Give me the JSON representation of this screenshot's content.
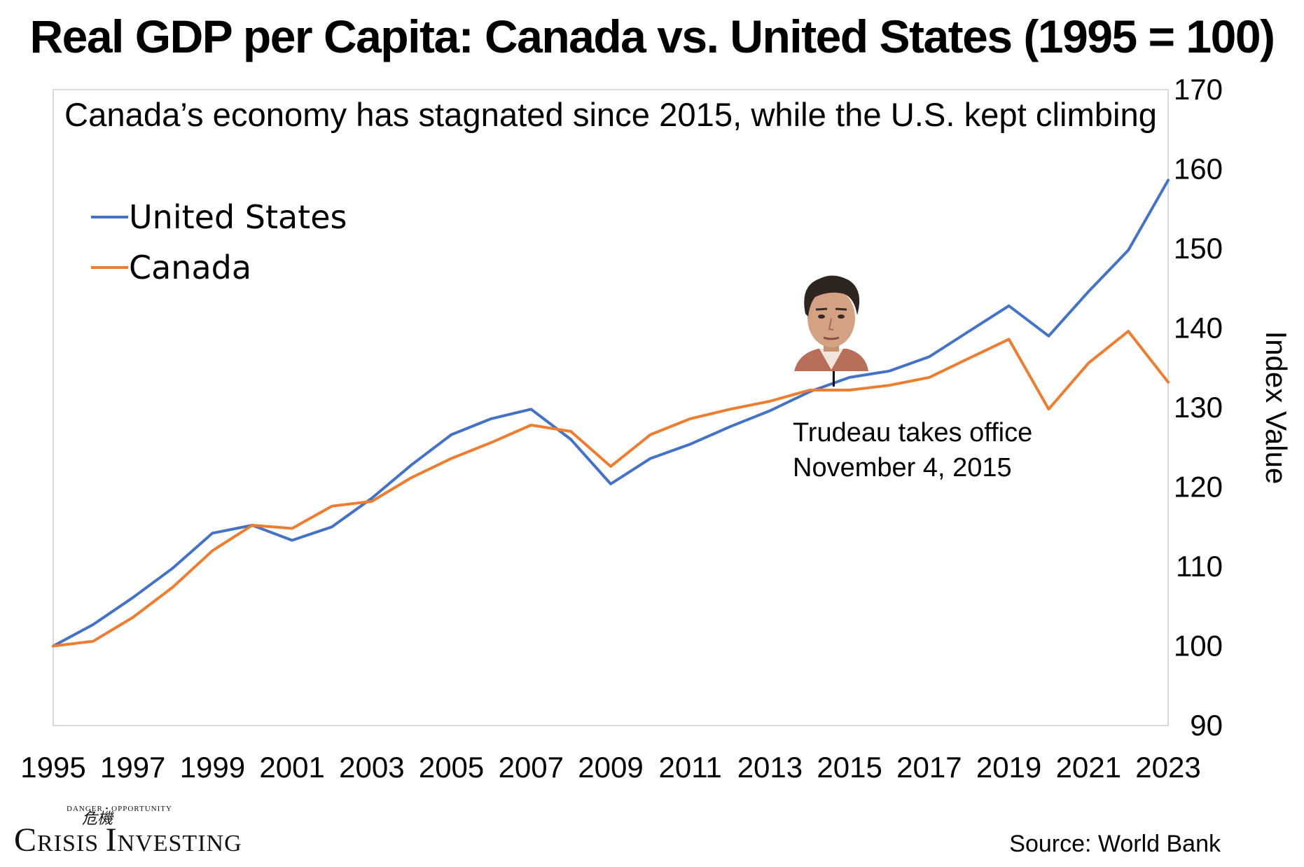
{
  "chart_data": {
    "type": "line",
    "title": "Real GDP per Capita: Canada vs. United States (1995 = 100)",
    "subtitle": "Canada’s economy has stagnated since 2015, while the U.S. kept climbing",
    "xlabel": "",
    "ylabel": "Index Value",
    "ylim": [
      90,
      170
    ],
    "yticks": [
      90,
      100,
      110,
      120,
      130,
      140,
      150,
      160,
      170
    ],
    "y_axis_side": "right",
    "grid": false,
    "legend_position": "top-left",
    "x": [
      1995,
      1996,
      1997,
      1998,
      1999,
      2000,
      2001,
      2002,
      2003,
      2004,
      2005,
      2006,
      2007,
      2008,
      2009,
      2010,
      2011,
      2012,
      2013,
      2014,
      2015,
      2016,
      2017,
      2018,
      2019,
      2020,
      2021,
      2022,
      2023
    ],
    "xtick_labels": [
      "1995",
      "1997",
      "1999",
      "2001",
      "2003",
      "2005",
      "2007",
      "2009",
      "2011",
      "2013",
      "2015",
      "2017",
      "2019",
      "2021",
      "2023"
    ],
    "series": [
      {
        "name": "United States",
        "color": "#4472C4",
        "values": [
          100,
          102.7,
          106.1,
          109.8,
          114.2,
          115.2,
          113.3,
          115.0,
          118.6,
          122.8,
          126.6,
          128.6,
          129.8,
          126.0,
          120.4,
          123.6,
          125.4,
          127.6,
          129.6,
          132.0,
          133.8,
          134.6,
          136.4,
          139.6,
          142.8,
          139.0,
          144.6,
          149.8,
          158.6
        ]
      },
      {
        "name": "Canada",
        "color": "#ED7D31",
        "values": [
          100,
          100.6,
          103.6,
          107.4,
          112.0,
          115.2,
          114.8,
          117.6,
          118.2,
          121.2,
          123.6,
          125.6,
          127.8,
          127.0,
          122.6,
          126.6,
          128.6,
          129.8,
          130.8,
          132.2,
          132.2,
          132.8,
          133.8,
          136.2,
          138.6,
          129.8,
          135.6,
          139.6,
          133.2
        ]
      }
    ],
    "annotation": {
      "line1": "Trudeau takes office",
      "line2": "November 4, 2015",
      "x": 2014.6,
      "image": "portrait-photo"
    },
    "source": "Source: World Bank"
  },
  "logo": {
    "name": "CRISIS INVESTING",
    "tagline": "DANGER • OPPORTUNITY",
    "big_c": "C",
    "rest1": "RISIS ",
    "big_i": "I",
    "rest2": "NVESTING"
  }
}
